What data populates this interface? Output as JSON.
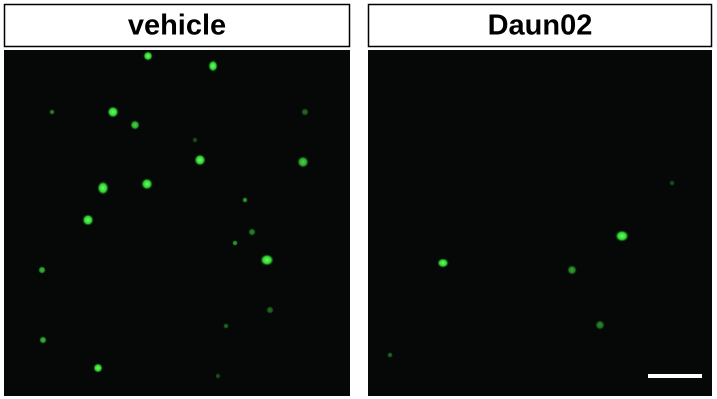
{
  "panels": [
    {
      "label": "vehicle"
    },
    {
      "label": "Daun02"
    }
  ]
}
